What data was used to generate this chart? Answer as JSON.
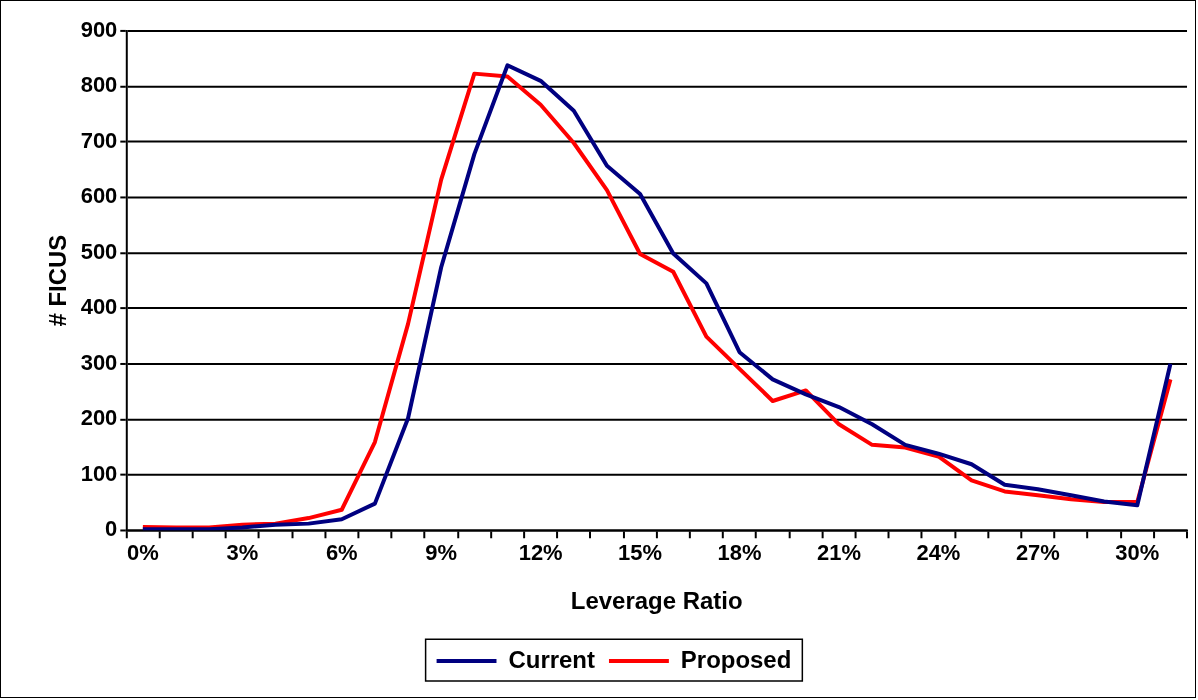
{
  "chart_data": {
    "type": "line",
    "xlabel": "Leverage Ratio",
    "ylabel": "# FICUS",
    "categories": [
      "0%",
      null,
      null,
      "3%",
      null,
      null,
      "6%",
      null,
      null,
      "9%",
      null,
      null,
      "12%",
      null,
      null,
      "15%",
      null,
      null,
      "18%",
      null,
      null,
      "21%",
      null,
      null,
      "24%",
      null,
      null,
      "27%",
      null,
      null,
      "30%",
      null
    ],
    "series": [
      {
        "name": "Current",
        "color": "#000080",
        "values": [
          2,
          2,
          2,
          5,
          10,
          12,
          20,
          48,
          202,
          474,
          678,
          838,
          810,
          756,
          657,
          606,
          499,
          445,
          321,
          272,
          245,
          222,
          191,
          154,
          138,
          119,
          82,
          74,
          63,
          52,
          45,
          300
        ]
      },
      {
        "name": "Proposed",
        "color": "#ff0000",
        "values": [
          6,
          5,
          5,
          10,
          12,
          22,
          37,
          159,
          372,
          632,
          823,
          818,
          767,
          698,
          613,
          498,
          466,
          349,
          291,
          233,
          252,
          191,
          154,
          149,
          133,
          90,
          70,
          63,
          56,
          51,
          51,
          272
        ]
      }
    ],
    "ylim": [
      0,
      900
    ],
    "yticks": [
      0,
      100,
      200,
      300,
      400,
      500,
      600,
      700,
      800,
      900
    ],
    "grid": "y",
    "legend": "bottom",
    "marker": "none",
    "line_style": "solid"
  }
}
